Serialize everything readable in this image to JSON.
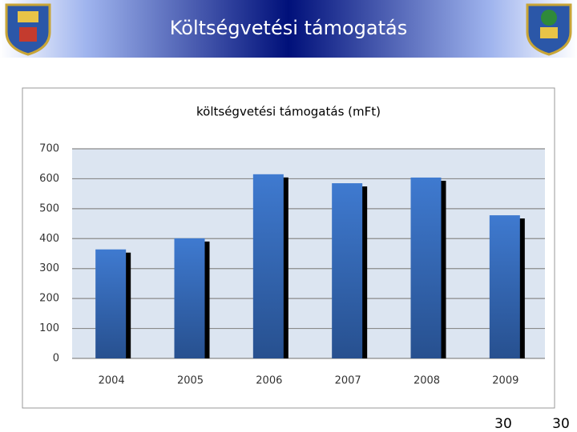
{
  "header": {
    "title": "Költségvetési támogatás"
  },
  "footer": {
    "page_numbers": [
      "30",
      "30"
    ]
  },
  "chart_data": {
    "type": "bar",
    "title": "költségvetési támogatás (mFt)",
    "categories": [
      "2004",
      "2005",
      "2006",
      "2007",
      "2008",
      "2009"
    ],
    "values": [
      364,
      401,
      615,
      585,
      604,
      478
    ],
    "color": "#3a70c0",
    "ylim": [
      0,
      700
    ],
    "yticks": [
      0,
      100,
      200,
      300,
      400,
      500,
      600,
      700
    ],
    "grid": true
  }
}
